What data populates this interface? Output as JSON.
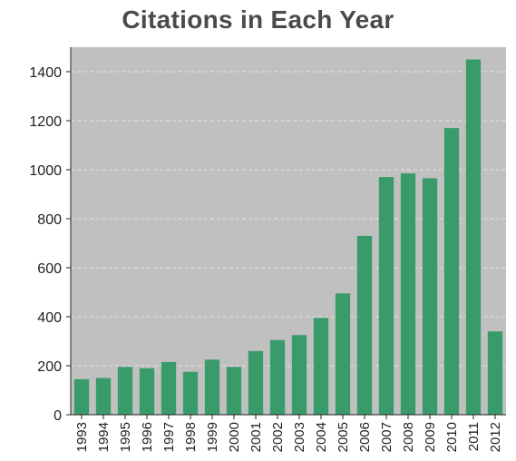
{
  "chart_data": {
    "type": "bar",
    "title": "Citations in Each Year",
    "xlabel": "",
    "ylabel": "",
    "categories": [
      "1993",
      "1994",
      "1995",
      "1996",
      "1997",
      "1998",
      "1999",
      "2000",
      "2001",
      "2002",
      "2003",
      "2004",
      "2005",
      "2006",
      "2007",
      "2008",
      "2009",
      "2010",
      "2011",
      "2012"
    ],
    "values": [
      145,
      150,
      195,
      190,
      215,
      175,
      225,
      195,
      260,
      305,
      325,
      395,
      495,
      730,
      970,
      985,
      965,
      1170,
      1450,
      340
    ],
    "yticks": [
      0,
      200,
      400,
      600,
      800,
      1000,
      1200,
      1400
    ],
    "ylim": [
      0,
      1500
    ],
    "grid": true,
    "colors": {
      "bar": "#3a9b6a",
      "plot_background": "#c0c0c0",
      "gridline": "#e4e4e4",
      "axis": "#222222",
      "title": "#4a4a4a"
    }
  }
}
